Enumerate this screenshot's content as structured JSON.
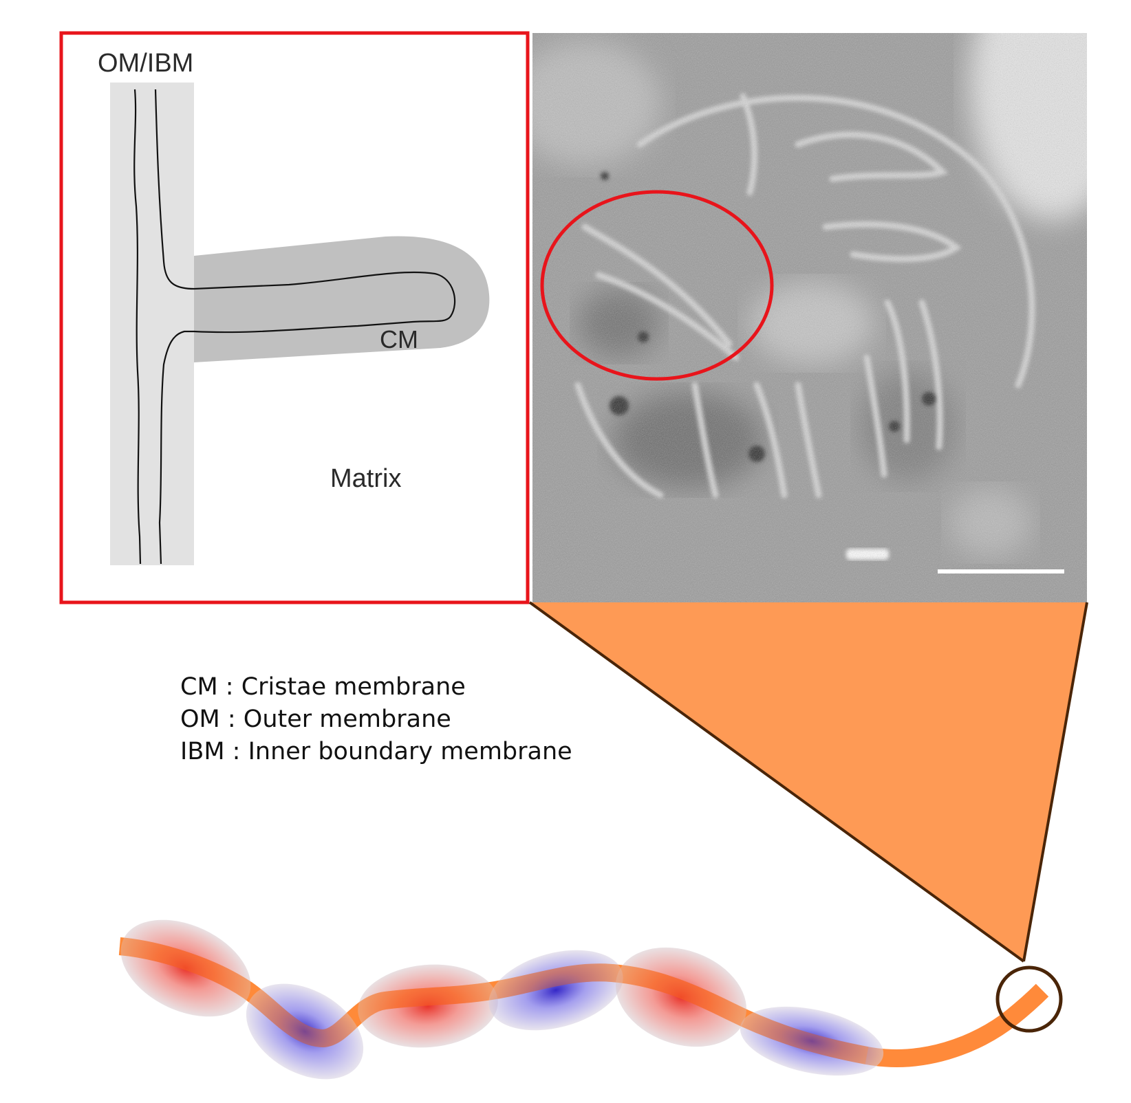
{
  "schematic": {
    "label_om_ibm": "OM/IBM",
    "label_cm": "CM",
    "label_matrix": "Matrix"
  },
  "legend": [
    {
      "abbr": "CM",
      "sep": " : ",
      "term": "Cristae membrane"
    },
    {
      "abbr": "OM",
      "sep": " : ",
      "term": "Outer membrane"
    },
    {
      "abbr": "IBM",
      "sep": " : ",
      "term": "Inner boundary membrane"
    }
  ],
  "colors": {
    "highlight_red": "#e8141b",
    "zoom_wedge": "#fe9a55",
    "wedge_outline": "#4a2508",
    "filament": "#ff8a3a",
    "red_blob": "#e8281e",
    "blue_blob": "#3b2fd6",
    "cm_band": "#c0c0c0",
    "om_band": "#e2e2e2"
  },
  "micrograph": {
    "description_icon": "tomogram-image",
    "scale_bar": true
  }
}
